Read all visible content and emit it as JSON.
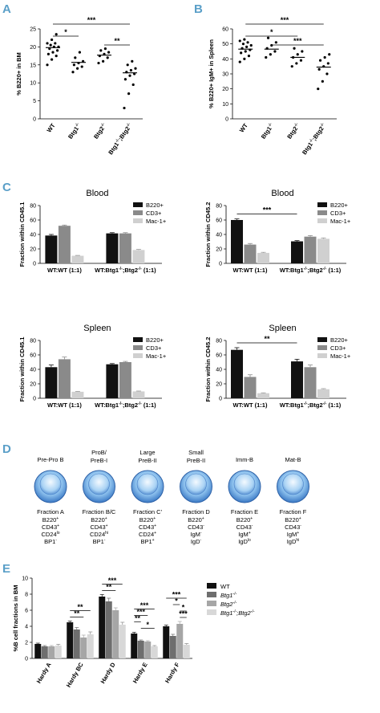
{
  "panel_letters": [
    "A",
    "B",
    "C",
    "D",
    "E"
  ],
  "chart_data": [
    {
      "id": "A",
      "type": "scatter",
      "ylabel": "% B220+ in BM",
      "ylim": [
        0,
        25
      ],
      "yticks": [
        0,
        5,
        10,
        15,
        20,
        25
      ],
      "categories": [
        "WT",
        "Btg1-/-",
        "Btg2-/-",
        "Btg1-/-;Btg2-/-"
      ],
      "points": [
        [
          15,
          16.5,
          17.5,
          18,
          18.5,
          19,
          19.5,
          20,
          20,
          20.5,
          21,
          21,
          22,
          23.5
        ],
        [
          13,
          14,
          14.5,
          15,
          15.5,
          16,
          17,
          18.5
        ],
        [
          15.5,
          16,
          17,
          17.5,
          18,
          18.5,
          19,
          19.5
        ],
        [
          3,
          7,
          9.5,
          11,
          12,
          12.5,
          13,
          13.5,
          14,
          15,
          16
        ]
      ],
      "means": [
        19.8,
        15.7,
        17.7,
        12.8
      ],
      "significance": [
        {
          "from": 0,
          "to": 3,
          "label": "***"
        },
        {
          "from": 0,
          "to": 1,
          "label": "*"
        },
        {
          "from": 2,
          "to": 3,
          "label": "**"
        }
      ]
    },
    {
      "id": "B",
      "type": "scatter",
      "ylabel": "% B220+ IgM+ in Spleen",
      "ylim": [
        0,
        60
      ],
      "yticks": [
        0,
        10,
        20,
        30,
        40,
        50,
        60
      ],
      "categories": [
        "WT",
        "Btg1-/-",
        "Btg2-/-",
        "Btg1-/-;Btg2-/-"
      ],
      "points": [
        [
          38,
          40,
          42,
          44,
          45,
          46,
          47,
          48,
          49,
          50,
          51,
          52,
          53
        ],
        [
          41,
          43,
          45,
          47,
          49,
          51,
          54
        ],
        [
          35,
          37,
          39,
          41,
          43,
          45,
          47
        ],
        [
          20,
          25,
          30,
          33,
          35,
          37,
          39,
          41,
          43
        ]
      ],
      "means": [
        46.5,
        46.5,
        41,
        34.5
      ],
      "significance": [
        {
          "from": 0,
          "to": 3,
          "label": "***"
        },
        {
          "from": 0,
          "to": 2,
          "label": "*"
        },
        {
          "from": 1,
          "to": 3,
          "label": "***"
        }
      ]
    },
    {
      "id": "C-blood-45.1",
      "type": "bar",
      "title": "Blood",
      "ylabel": "Fraction within CD45.1",
      "ylim": [
        0,
        80
      ],
      "yticks": [
        0,
        20,
        40,
        60,
        80
      ],
      "categories": [
        "WT:WT (1:1)",
        "WT:Btg1-/-;Btg2-/- (1:1)"
      ],
      "series": [
        {
          "name": "B220+",
          "values": [
            38.5,
            41.5
          ],
          "err": [
            1.5,
            1
          ]
        },
        {
          "name": "CD3+",
          "values": [
            52,
            41.5
          ],
          "err": [
            1,
            1
          ]
        },
        {
          "name": "Mac-1+",
          "values": [
            10.5,
            18.5
          ],
          "err": [
            0.5,
            0.8
          ]
        }
      ],
      "significance": []
    },
    {
      "id": "C-blood-45.2",
      "type": "bar",
      "title": "Blood",
      "ylabel": "Fraction within CD45.2",
      "ylim": [
        0,
        80
      ],
      "yticks": [
        0,
        20,
        40,
        60,
        80
      ],
      "categories": [
        "WT:WT (1:1)",
        "WT:Btg1-/-;Btg2-/- (1:1)"
      ],
      "series": [
        {
          "name": "B220+",
          "values": [
            60,
            30.5
          ],
          "err": [
            1.5,
            1
          ]
        },
        {
          "name": "CD3+",
          "values": [
            26,
            37
          ],
          "err": [
            1.5,
            1.5
          ]
        },
        {
          "name": "Mac-1+",
          "values": [
            14.5,
            34
          ],
          "err": [
            0.8,
            1.2
          ]
        }
      ],
      "significance": [
        {
          "label": "***"
        }
      ]
    },
    {
      "id": "C-spleen-45.1",
      "type": "bar",
      "title": "Spleen",
      "ylabel": "Fraction within CD45.1",
      "ylim": [
        0,
        80
      ],
      "yticks": [
        0,
        20,
        40,
        60,
        80
      ],
      "categories": [
        "WT:WT (1:1)",
        "WT:Btg1-/-;Btg2-/- (1:1)"
      ],
      "series": [
        {
          "name": "B220+",
          "values": [
            43,
            47
          ],
          "err": [
            3,
            1
          ]
        },
        {
          "name": "CD3+",
          "values": [
            54,
            50
          ],
          "err": [
            3,
            1
          ]
        },
        {
          "name": "Mac-1+",
          "values": [
            9,
            9.5
          ],
          "err": [
            0.5,
            0.5
          ]
        }
      ],
      "significance": []
    },
    {
      "id": "C-spleen-45.2",
      "type": "bar",
      "title": "Spleen",
      "ylabel": "Fraction within CD45.2",
      "ylim": [
        0,
        80
      ],
      "yticks": [
        0,
        20,
        40,
        60,
        80
      ],
      "categories": [
        "WT:WT (1:1)",
        "WT:Btg1-/-;Btg2-/- (1:1)"
      ],
      "series": [
        {
          "name": "B220+",
          "values": [
            67,
            51
          ],
          "err": [
            3,
            3
          ]
        },
        {
          "name": "CD3+",
          "values": [
            29.5,
            43
          ],
          "err": [
            3,
            3
          ]
        },
        {
          "name": "Mac-1+",
          "values": [
            7,
            12.5
          ],
          "err": [
            0.5,
            0.8
          ]
        }
      ],
      "significance": [
        {
          "label": "**"
        }
      ]
    },
    {
      "id": "E",
      "type": "bar",
      "ylabel": "%B cell fractions in BM",
      "ylim": [
        0,
        10
      ],
      "yticks": [
        0,
        2,
        4,
        6,
        8,
        10
      ],
      "categories": [
        "Hardy A",
        "Hardy BC",
        "Hardy D",
        "Hardy E",
        "Hardy F"
      ],
      "series": [
        {
          "name": "WT",
          "values": [
            1.8,
            4.5,
            7.7,
            3.1,
            4.0
          ],
          "err": [
            0.1,
            0.15,
            0.25,
            0.15,
            0.15
          ]
        },
        {
          "name": "Btg1-/-",
          "values": [
            1.5,
            3.6,
            7.1,
            2.2,
            2.8
          ],
          "err": [
            0.1,
            0.25,
            0.4,
            0.1,
            0.2
          ]
        },
        {
          "name": "Btg2-/-",
          "values": [
            1.5,
            2.6,
            6.0,
            2.1,
            4.3
          ],
          "err": [
            0.1,
            0.3,
            0.3,
            0.1,
            0.3
          ]
        },
        {
          "name": "Btg1-/-;Btg2-/-",
          "values": [
            1.6,
            3.0,
            4.2,
            1.5,
            1.7
          ],
          "err": [
            0.15,
            0.3,
            0.3,
            0.1,
            0.15
          ]
        }
      ],
      "significance": [
        {
          "category": 1,
          "labels": [
            "**",
            "**"
          ]
        },
        {
          "category": 2,
          "labels": [
            "***",
            "**"
          ]
        },
        {
          "category": 3,
          "labels": [
            "***",
            "***",
            "**",
            "*"
          ]
        },
        {
          "category": 4,
          "labels": [
            "***",
            "*",
            "*",
            "***"
          ]
        }
      ]
    }
  ],
  "panel_d": {
    "stages": [
      {
        "name": "Pre-Pro B",
        "fraction": "Fraction A",
        "markers": [
          "B220+",
          "CD43+",
          "CD24lo",
          "BP1-"
        ]
      },
      {
        "name": "ProB/ PreB-I",
        "fraction": "Fraction B/C",
        "markers": [
          "B220+",
          "CD43+",
          "CD24hi",
          "BP1-"
        ]
      },
      {
        "name": "Large PreB-II",
        "fraction": "Fraction C'",
        "markers": [
          "B220+",
          "CD43+",
          "CD24+",
          "BP1+"
        ]
      },
      {
        "name": "Small PreB-II",
        "fraction": "Fraction D",
        "markers": [
          "B220+",
          "CD43-",
          "IgM-",
          "IgD-"
        ]
      },
      {
        "name": "Imm-B",
        "fraction": "Fraction E",
        "markers": [
          "B220+",
          "CD43-",
          "IgM+",
          "IgDlo"
        ]
      },
      {
        "name": "Mat-B",
        "fraction": "Fraction F",
        "markers": [
          "B220+",
          "CD43-",
          "IgM+",
          "IgDhi"
        ]
      }
    ]
  },
  "colors": {
    "panel_letter": "#5a9fc8",
    "cell_outer": "#3b6fb6",
    "cell_inner": "#9cc8ee",
    "series_C": [
      "#111111",
      "#8a8a8a",
      "#d0d0d0"
    ],
    "series_E": [
      "#111111",
      "#6e6e6e",
      "#a6a6a6",
      "#d8d8d8"
    ]
  }
}
